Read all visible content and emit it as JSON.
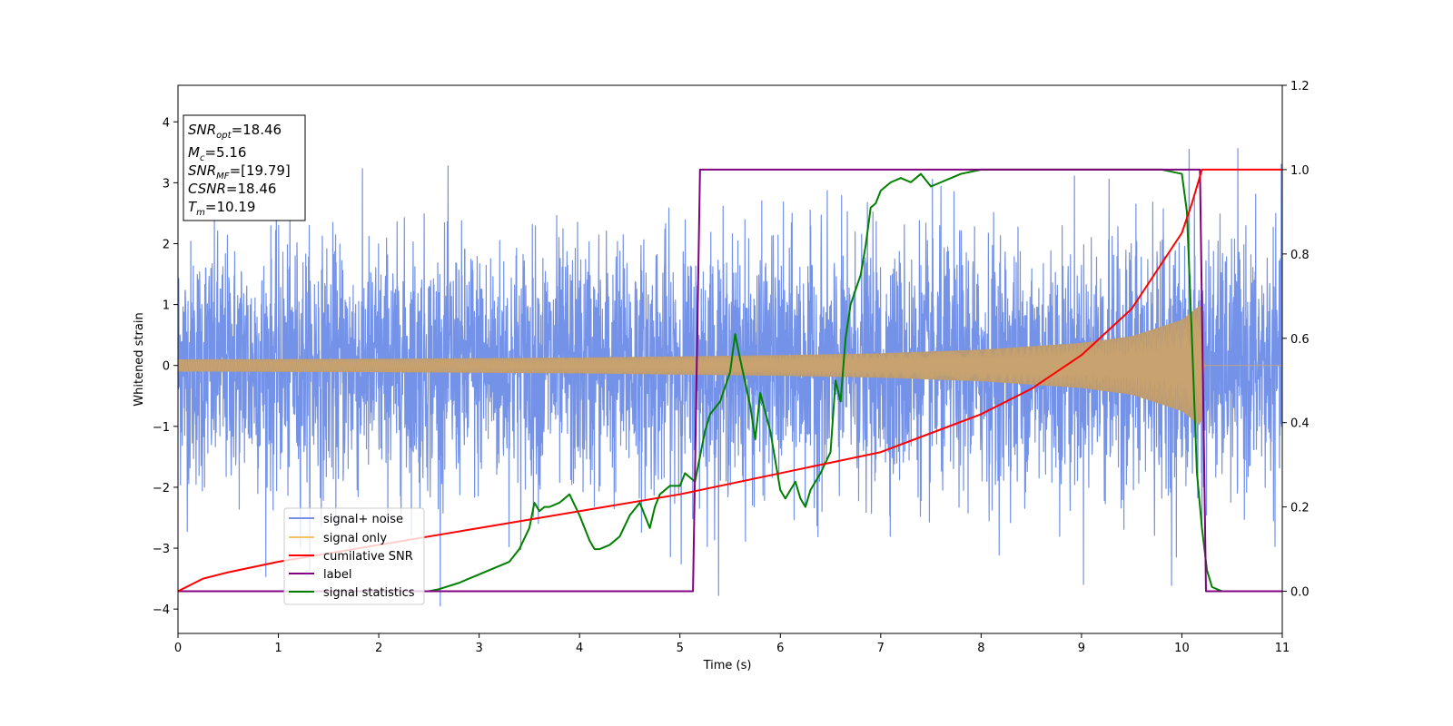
{
  "chart_data": {
    "type": "line",
    "xlabel": "Time (s)",
    "ylabel": "Whitened strain",
    "xlim": [
      0,
      11
    ],
    "ylim_left": [
      -4.4,
      4.6
    ],
    "ylim_right": [
      -0.1,
      1.2
    ],
    "xticks": [
      "0",
      "1",
      "2",
      "3",
      "4",
      "5",
      "6",
      "7",
      "8",
      "9",
      "10",
      "11"
    ],
    "yticks_left": [
      "−4",
      "−3",
      "−2",
      "−1",
      "0",
      "1",
      "2",
      "3",
      "4"
    ],
    "yticks_right": [
      "0.0",
      "0.2",
      "0.4",
      "0.6",
      "0.8",
      "1.0",
      "1.2"
    ],
    "grid": false,
    "legend_placement": "lower-left",
    "legend": [
      {
        "label": "signal+ noise",
        "color": "#7492e8"
      },
      {
        "label": "signal only",
        "color": "#f5c26b"
      },
      {
        "label": "cumilative SNR",
        "color": "#ff0000"
      },
      {
        "label": "label",
        "color": "#800080"
      },
      {
        "label": "signal statistics",
        "color": "#008000"
      }
    ],
    "annotation": [
      {
        "name": "SNR",
        "sub": "opt",
        "value": "18.46"
      },
      {
        "name": "M",
        "sub": "c",
        "value": "5.16"
      },
      {
        "name": "SNR",
        "sub": "MF",
        "value": "[19.79]"
      },
      {
        "name": "CSNR",
        "sub": "",
        "value": "18.46"
      },
      {
        "name": "T",
        "sub": "m",
        "value": "10.19"
      }
    ],
    "series": [
      {
        "name": "signal+ noise",
        "axis": "left",
        "description": "whitened strain (Gaussian noise of std about 1 plus signal) sampled over 0 to 11 s",
        "noise_std": 1.0,
        "range": [
          -3.95,
          4.2
        ]
      },
      {
        "name": "signal only",
        "axis": "left",
        "description": "chirp with envelope growing from about 0.1 at t=0 to about 1.0 near t=10.19 s, zero after merger",
        "envelope": {
          "x": [
            0,
            2,
            4,
            6,
            7,
            8,
            9,
            9.5,
            10,
            10.19,
            10.22,
            11
          ],
          "y": [
            0.1,
            0.11,
            0.13,
            0.17,
            0.2,
            0.26,
            0.37,
            0.48,
            0.75,
            1.0,
            0.0,
            0.0
          ]
        }
      },
      {
        "name": "cumilative SNR",
        "axis": "right",
        "x": [
          0,
          0.25,
          0.5,
          1,
          1.5,
          2,
          3,
          4,
          5,
          6,
          7,
          8,
          8.5,
          9,
          9.5,
          10,
          10.1,
          10.2,
          10.21,
          11
        ],
        "y": [
          0.0,
          0.03,
          0.045,
          0.07,
          0.09,
          0.11,
          0.15,
          0.19,
          0.23,
          0.28,
          0.33,
          0.42,
          0.48,
          0.56,
          0.67,
          0.85,
          0.92,
          1.0,
          1.0,
          1.0
        ]
      },
      {
        "name": "label",
        "axis": "right",
        "x": [
          0,
          5.13,
          5.2,
          10.18,
          10.24,
          11
        ],
        "y": [
          0,
          0,
          1,
          1,
          0,
          0
        ]
      },
      {
        "name": "signal statistics",
        "axis": "right",
        "x": [
          0,
          0.5,
          1,
          1.5,
          2,
          2.5,
          2.6,
          2.8,
          2.9,
          3.0,
          3.1,
          3.2,
          3.3,
          3.4,
          3.5,
          3.55,
          3.6,
          3.65,
          3.7,
          3.8,
          3.9,
          4.0,
          4.1,
          4.15,
          4.2,
          4.3,
          4.4,
          4.5,
          4.6,
          4.7,
          4.75,
          4.8,
          4.9,
          5.0,
          5.05,
          5.1,
          5.15,
          5.2,
          5.25,
          5.3,
          5.4,
          5.5,
          5.55,
          5.6,
          5.7,
          5.75,
          5.8,
          5.9,
          6.0,
          6.05,
          6.1,
          6.15,
          6.2,
          6.25,
          6.3,
          6.4,
          6.5,
          6.55,
          6.6,
          6.65,
          6.7,
          6.8,
          6.85,
          6.9,
          6.95,
          7.0,
          7.1,
          7.2,
          7.3,
          7.4,
          7.5,
          7.6,
          7.7,
          7.8,
          7.9,
          8.0,
          8.5,
          9.0,
          9.5,
          9.8,
          10.0,
          10.05,
          10.1,
          10.15,
          10.2,
          10.25,
          10.3,
          10.4,
          10.6,
          11
        ],
        "y": [
          0.0,
          0.0,
          0.0,
          0.0,
          0.0,
          0.0,
          0.005,
          0.02,
          0.03,
          0.04,
          0.05,
          0.06,
          0.07,
          0.1,
          0.15,
          0.21,
          0.19,
          0.2,
          0.2,
          0.21,
          0.23,
          0.18,
          0.12,
          0.1,
          0.1,
          0.11,
          0.13,
          0.18,
          0.21,
          0.15,
          0.2,
          0.23,
          0.25,
          0.25,
          0.28,
          0.27,
          0.26,
          0.32,
          0.38,
          0.42,
          0.45,
          0.52,
          0.61,
          0.55,
          0.44,
          0.36,
          0.47,
          0.38,
          0.24,
          0.22,
          0.24,
          0.26,
          0.22,
          0.2,
          0.24,
          0.28,
          0.33,
          0.5,
          0.45,
          0.6,
          0.68,
          0.75,
          0.82,
          0.91,
          0.92,
          0.95,
          0.97,
          0.98,
          0.97,
          0.99,
          0.96,
          0.97,
          0.98,
          0.99,
          0.995,
          1.0,
          1.0,
          1.0,
          1.0,
          1.0,
          0.99,
          0.9,
          0.6,
          0.28,
          0.15,
          0.05,
          0.01,
          0.0,
          0.0,
          0.0
        ]
      }
    ]
  }
}
